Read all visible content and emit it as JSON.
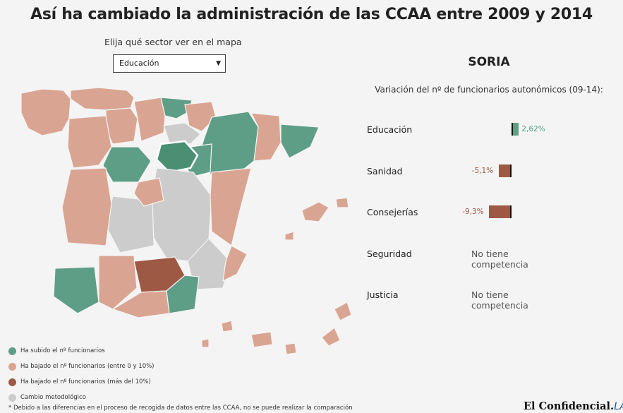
{
  "title": "Así ha cambiado la administración de las CCAA entre 2009 y 2014",
  "selector": {
    "label": "Elija qué sector ver en el mapa",
    "value": "Educación"
  },
  "colors": {
    "up": "#5e9e87",
    "down_small": "#d9a592",
    "down_big": "#9e5945",
    "method_change": "#cccccc",
    "up_text": "#4f9c7e",
    "down_text": "#9e5945",
    "selected": "#4a8f73"
  },
  "legend": [
    {
      "label": "Ha subido el nº funcionarios",
      "color": "#5e9e87"
    },
    {
      "label": "Ha bajado el nº funcionarios (entre 0 y 10%)",
      "color": "#d9a592"
    },
    {
      "label": "Ha bajado el nº funcionarios (más del 10%)",
      "color": "#9e5945"
    },
    {
      "label": "Cambio metodológico",
      "color": "#cccccc"
    }
  ],
  "footnote": "* Debido a las diferencias en el proceso de recogida de datos entre las CCAA, no se puede realizar la comparación",
  "brand": {
    "name": "El Confidencial.",
    "lab": "LAB"
  },
  "chart_data": {
    "type": "bar",
    "title": "SORIA",
    "subtitle": "Variación del nº de funcionarios autonómicos (09-14):",
    "categories": [
      "Educación",
      "Sanidad",
      "Consejerías",
      "Seguridad",
      "Justicia"
    ],
    "values": [
      2.62,
      -5.1,
      -9.3,
      null,
      null
    ],
    "value_labels": [
      "2,62%",
      "-5,1%",
      "-9,3%",
      "",
      ""
    ],
    "no_data_text": "No tiene competencia"
  }
}
